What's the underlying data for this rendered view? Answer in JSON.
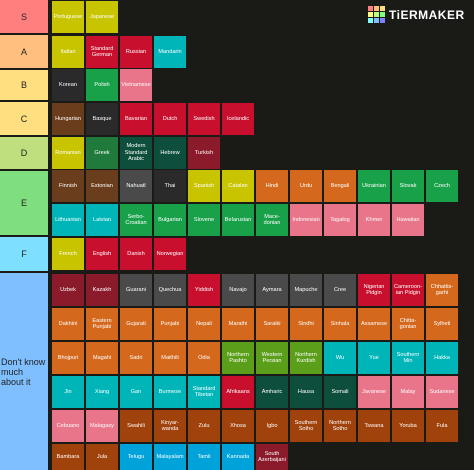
{
  "brand": {
    "logo_text": "TiERMAKER",
    "logo_colors": [
      "#ff7f7f",
      "#ffbf7f",
      "#ffdf7f",
      "#ffff7f",
      "#bfff7f",
      "#7fff7f",
      "#7fffff",
      "#7fbfff",
      "#7f7fff"
    ]
  },
  "tiers": [
    {
      "label": "S",
      "color": "#ff7f7f",
      "items": [
        {
          "text": "Portuguese",
          "color": "#c9c400"
        },
        {
          "text": "Japanese",
          "color": "#c9c400"
        }
      ]
    },
    {
      "label": "A",
      "color": "#ffbf7f",
      "items": [
        {
          "text": "Italian",
          "color": "#c9c400"
        },
        {
          "text": "Standard German",
          "color": "#c8102e"
        },
        {
          "text": "Russian",
          "color": "#c8102e"
        },
        {
          "text": "Mandarin",
          "color": "#00b5b8"
        }
      ]
    },
    {
      "label": "B",
      "color": "#ffdf7f",
      "items": [
        {
          "text": "Korean",
          "color": "#2a2a2a"
        },
        {
          "text": "Polish",
          "color": "#19a14a"
        },
        {
          "text": "Vietnamese",
          "color": "#e8758a"
        }
      ]
    },
    {
      "label": "C",
      "color": "#ffdf7f",
      "items": [
        {
          "text": "Hungarian",
          "color": "#6a3e1c"
        },
        {
          "text": "Basque",
          "color": "#2a2a2a"
        },
        {
          "text": "Bavarian",
          "color": "#c8102e"
        },
        {
          "text": "Dutch",
          "color": "#c8102e"
        },
        {
          "text": "Swedish",
          "color": "#c8102e"
        },
        {
          "text": "Icelandic",
          "color": "#c8102e"
        }
      ]
    },
    {
      "label": "D",
      "color": "#bfdf7f",
      "items": [
        {
          "text": "Romanian",
          "color": "#c9c400"
        },
        {
          "text": "Greek",
          "color": "#1f7a3b"
        },
        {
          "text": "Modern Standard Arabic",
          "color": "#0d4f3c"
        },
        {
          "text": "Hebrew",
          "color": "#0d4f3c"
        },
        {
          "text": "Turkish",
          "color": "#8b1a2b"
        }
      ]
    },
    {
      "label": "E",
      "color": "#7fdf7f",
      "items": [
        {
          "text": "Finnish",
          "color": "#6a3e1c"
        },
        {
          "text": "Estonian",
          "color": "#6a3e1c"
        },
        {
          "text": "Nahuatl",
          "color": "#4a4a4a"
        },
        {
          "text": "Thai",
          "color": "#2a2a2a"
        },
        {
          "text": "Spanish",
          "color": "#c9c400"
        },
        {
          "text": "Catalan",
          "color": "#c9c400"
        },
        {
          "text": "Hindi",
          "color": "#d4691e"
        },
        {
          "text": "Urdu",
          "color": "#d4691e"
        },
        {
          "text": "Bengali",
          "color": "#d4691e"
        },
        {
          "text": "Ukrainian",
          "color": "#19a14a"
        },
        {
          "text": "Slovak",
          "color": "#19a14a"
        },
        {
          "text": "Czech",
          "color": "#19a14a"
        },
        {
          "text": "Lithuanian",
          "color": "#00b5b8"
        },
        {
          "text": "Latvian",
          "color": "#00b5b8"
        },
        {
          "text": "Serbo-Croatian",
          "color": "#19a14a"
        },
        {
          "text": "Bulgarian",
          "color": "#19a14a"
        },
        {
          "text": "Slovene",
          "color": "#19a14a"
        },
        {
          "text": "Belarusian",
          "color": "#19a14a"
        },
        {
          "text": "Mace-donian",
          "color": "#19a14a"
        },
        {
          "text": "Indonesian",
          "color": "#e8758a"
        },
        {
          "text": "Tagalog",
          "color": "#e8758a"
        },
        {
          "text": "Khmer",
          "color": "#e8758a"
        },
        {
          "text": "Hawaiian",
          "color": "#e8758a"
        }
      ]
    },
    {
      "label": "F",
      "color": "#7fdfff",
      "items": [
        {
          "text": "French",
          "color": "#c9c400"
        },
        {
          "text": "English",
          "color": "#c8102e"
        },
        {
          "text": "Danish",
          "color": "#c8102e"
        },
        {
          "text": "Norwegian",
          "color": "#c8102e"
        }
      ]
    },
    {
      "label": "Don't know much about it",
      "color": "#7fbfff",
      "items": [
        {
          "text": "Uzbek",
          "color": "#8b1a2b"
        },
        {
          "text": "Kazakh",
          "color": "#8b1a2b"
        },
        {
          "text": "Guarani",
          "color": "#4a4a4a"
        },
        {
          "text": "Quechua",
          "color": "#4a4a4a"
        },
        {
          "text": "Yiddish",
          "color": "#c8102e"
        },
        {
          "text": "Navajo",
          "color": "#4a4a4a"
        },
        {
          "text": "Aymara",
          "color": "#4a4a4a"
        },
        {
          "text": "Mapuche",
          "color": "#4a4a4a"
        },
        {
          "text": "Cree",
          "color": "#4a4a4a"
        },
        {
          "text": "Nigerian Pidgin",
          "color": "#c8102e"
        },
        {
          "text": "Cameroon-ian Pidgin",
          "color": "#c8102e"
        },
        {
          "text": "Chhattis-garhi",
          "color": "#d4691e"
        },
        {
          "text": "Dakhini",
          "color": "#d4691e"
        },
        {
          "text": "Eastern Punjabi",
          "color": "#d4691e"
        },
        {
          "text": "Gujarati",
          "color": "#d4691e"
        },
        {
          "text": "Punjabi",
          "color": "#d4691e"
        },
        {
          "text": "Nepali",
          "color": "#d4691e"
        },
        {
          "text": "Marathi",
          "color": "#d4691e"
        },
        {
          "text": "Saraiki",
          "color": "#d4691e"
        },
        {
          "text": "Sindhi",
          "color": "#d4691e"
        },
        {
          "text": "Sinhala",
          "color": "#d4691e"
        },
        {
          "text": "Assamese",
          "color": "#d4691e"
        },
        {
          "text": "Chitta-gonian",
          "color": "#d4691e"
        },
        {
          "text": "Sylheti",
          "color": "#d4691e"
        },
        {
          "text": "Bhojpuri",
          "color": "#d4691e"
        },
        {
          "text": "Magahi",
          "color": "#d4691e"
        },
        {
          "text": "Sadri",
          "color": "#d4691e"
        },
        {
          "text": "Maithili",
          "color": "#d4691e"
        },
        {
          "text": "Odia",
          "color": "#d4691e"
        },
        {
          "text": "Northern Pashto",
          "color": "#5a9e1a"
        },
        {
          "text": "Western Persian",
          "color": "#5a9e1a"
        },
        {
          "text": "Northern Kurdish",
          "color": "#5a9e1a"
        },
        {
          "text": "Wu",
          "color": "#00b5b8"
        },
        {
          "text": "Yue",
          "color": "#00b5b8"
        },
        {
          "text": "Southern Min",
          "color": "#00b5b8"
        },
        {
          "text": "Hakka",
          "color": "#00b5b8"
        },
        {
          "text": "Jin",
          "color": "#00b5b8"
        },
        {
          "text": "Xiang",
          "color": "#00b5b8"
        },
        {
          "text": "Gan",
          "color": "#00b5b8"
        },
        {
          "text": "Burmese",
          "color": "#00b5b8"
        },
        {
          "text": "Standard Tibetan",
          "color": "#00b5b8"
        },
        {
          "text": "Afrikaans",
          "color": "#c8102e"
        },
        {
          "text": "Amharic",
          "color": "#0d4f3c"
        },
        {
          "text": "Hausa",
          "color": "#0d4f3c"
        },
        {
          "text": "Somali",
          "color": "#0d4f3c"
        },
        {
          "text": "Javanese",
          "color": "#e8758a"
        },
        {
          "text": "Malay",
          "color": "#e8758a"
        },
        {
          "text": "Sudanese",
          "color": "#e8758a"
        },
        {
          "text": "Cebuano",
          "color": "#e8758a"
        },
        {
          "text": "Malagasy",
          "color": "#e8758a"
        },
        {
          "text": "Swahili",
          "color": "#a0420c"
        },
        {
          "text": "Kinyar-wanda",
          "color": "#a0420c"
        },
        {
          "text": "Zulu",
          "color": "#a0420c"
        },
        {
          "text": "Xhosa",
          "color": "#a0420c"
        },
        {
          "text": "Igbo",
          "color": "#a0420c"
        },
        {
          "text": "Southern Sotho",
          "color": "#a0420c"
        },
        {
          "text": "Northern Sotho",
          "color": "#a0420c"
        },
        {
          "text": "Tswana",
          "color": "#a0420c"
        },
        {
          "text": "Yoruba",
          "color": "#a0420c"
        },
        {
          "text": "Fula",
          "color": "#a0420c"
        },
        {
          "text": "Bambara",
          "color": "#a0420c"
        },
        {
          "text": "Jula",
          "color": "#a0420c"
        },
        {
          "text": "Telugu",
          "color": "#00a3d9"
        },
        {
          "text": "Malayalam",
          "color": "#00a3d9"
        },
        {
          "text": "Tamil",
          "color": "#00a3d9"
        },
        {
          "text": "Kannada",
          "color": "#00a3d9"
        },
        {
          "text": "South Azerbaijani",
          "color": "#8b1a2b"
        }
      ]
    }
  ]
}
